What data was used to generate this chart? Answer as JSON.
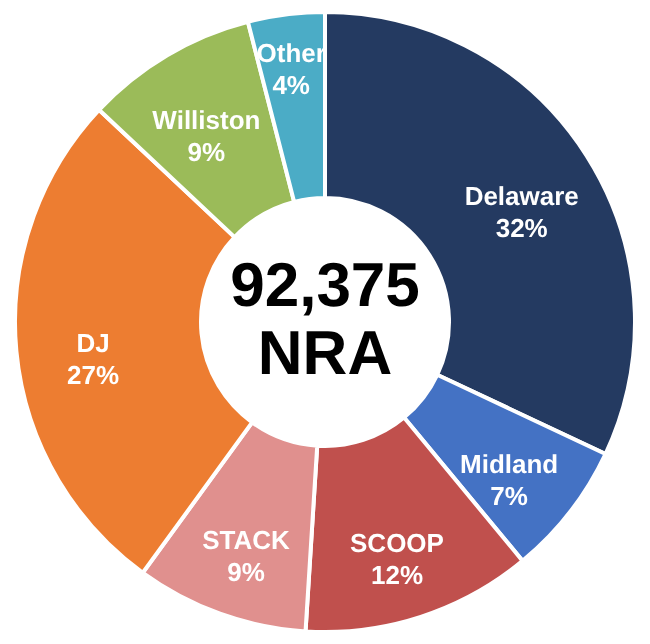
{
  "chart_data": {
    "type": "donut",
    "categories": [
      "Delaware",
      "Midland",
      "SCOOP",
      "STACK",
      "DJ",
      "Williston",
      "Other"
    ],
    "values": [
      32,
      7,
      12,
      9,
      27,
      9,
      4
    ],
    "colors": [
      "#243a61",
      "#4472c4",
      "#c0504d",
      "#e0908e",
      "#ed7d31",
      "#9bbb59",
      "#4bacc6"
    ],
    "value_labels": [
      "32%",
      "7%",
      "12%",
      "9%",
      "27%",
      "9%",
      "4%"
    ],
    "annotations": [
      "92,375",
      "NRA"
    ]
  }
}
